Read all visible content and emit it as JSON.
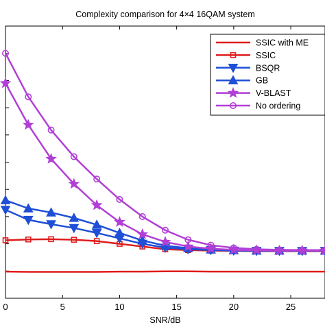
{
  "chart_data": {
    "type": "line",
    "title": "Complexity comparison for 4×4 16QAM system",
    "xlabel": "SNR/dB",
    "ylabel": "",
    "xlim": [
      0,
      28
    ],
    "ylim": [
      0,
      1.0
    ],
    "x_ticks": [
      0,
      5,
      10,
      15,
      20,
      25
    ],
    "x_tick_labels": [
      "0",
      "5",
      "10",
      "15",
      "20",
      "25"
    ],
    "y_ticks": [
      0.1,
      0.2,
      0.3,
      0.4,
      0.5,
      0.6,
      0.7,
      0.8,
      0.9
    ],
    "grid": false,
    "legend_position": "top-right",
    "x": [
      0,
      2,
      4,
      6,
      8,
      10,
      12,
      14,
      16,
      18,
      20,
      22,
      24,
      26,
      28
    ],
    "series": [
      {
        "name": "SSIC with ME",
        "color": "#e01b1b",
        "marker": "none",
        "values": [
          0.098,
          0.097,
          0.097,
          0.097,
          0.097,
          0.098,
          0.098,
          0.099,
          0.099,
          0.098,
          0.098,
          0.098,
          0.098,
          0.098,
          0.098
        ]
      },
      {
        "name": "SSIC",
        "color": "#e01b1b",
        "marker": "square",
        "values": [
          0.213,
          0.216,
          0.217,
          0.215,
          0.21,
          0.2,
          0.19,
          0.18,
          0.177,
          0.175,
          0.174,
          0.173,
          0.173,
          0.173,
          0.173
        ]
      },
      {
        "name": "BSQR",
        "color": "#1f4fd6",
        "marker": "triangle-down",
        "values": [
          0.325,
          0.288,
          0.272,
          0.258,
          0.24,
          0.22,
          0.2,
          0.186,
          0.18,
          0.177,
          0.175,
          0.174,
          0.174,
          0.174,
          0.174
        ]
      },
      {
        "name": "GB",
        "color": "#1f4fd6",
        "marker": "triangle-up",
        "values": [
          0.36,
          0.33,
          0.315,
          0.295,
          0.27,
          0.24,
          0.212,
          0.193,
          0.184,
          0.179,
          0.176,
          0.175,
          0.175,
          0.175,
          0.175
        ]
      },
      {
        "name": "V-BLAST",
        "color": "#b13fd6",
        "marker": "star",
        "values": [
          0.79,
          0.637,
          0.512,
          0.42,
          0.342,
          0.28,
          0.235,
          0.207,
          0.19,
          0.182,
          0.178,
          0.176,
          0.175,
          0.175,
          0.175
        ]
      },
      {
        "name": "No ordering",
        "color": "#b13fd6",
        "marker": "circle",
        "values": [
          0.9,
          0.74,
          0.618,
          0.52,
          0.438,
          0.363,
          0.3,
          0.25,
          0.215,
          0.195,
          0.185,
          0.18,
          0.178,
          0.177,
          0.177
        ]
      }
    ]
  }
}
